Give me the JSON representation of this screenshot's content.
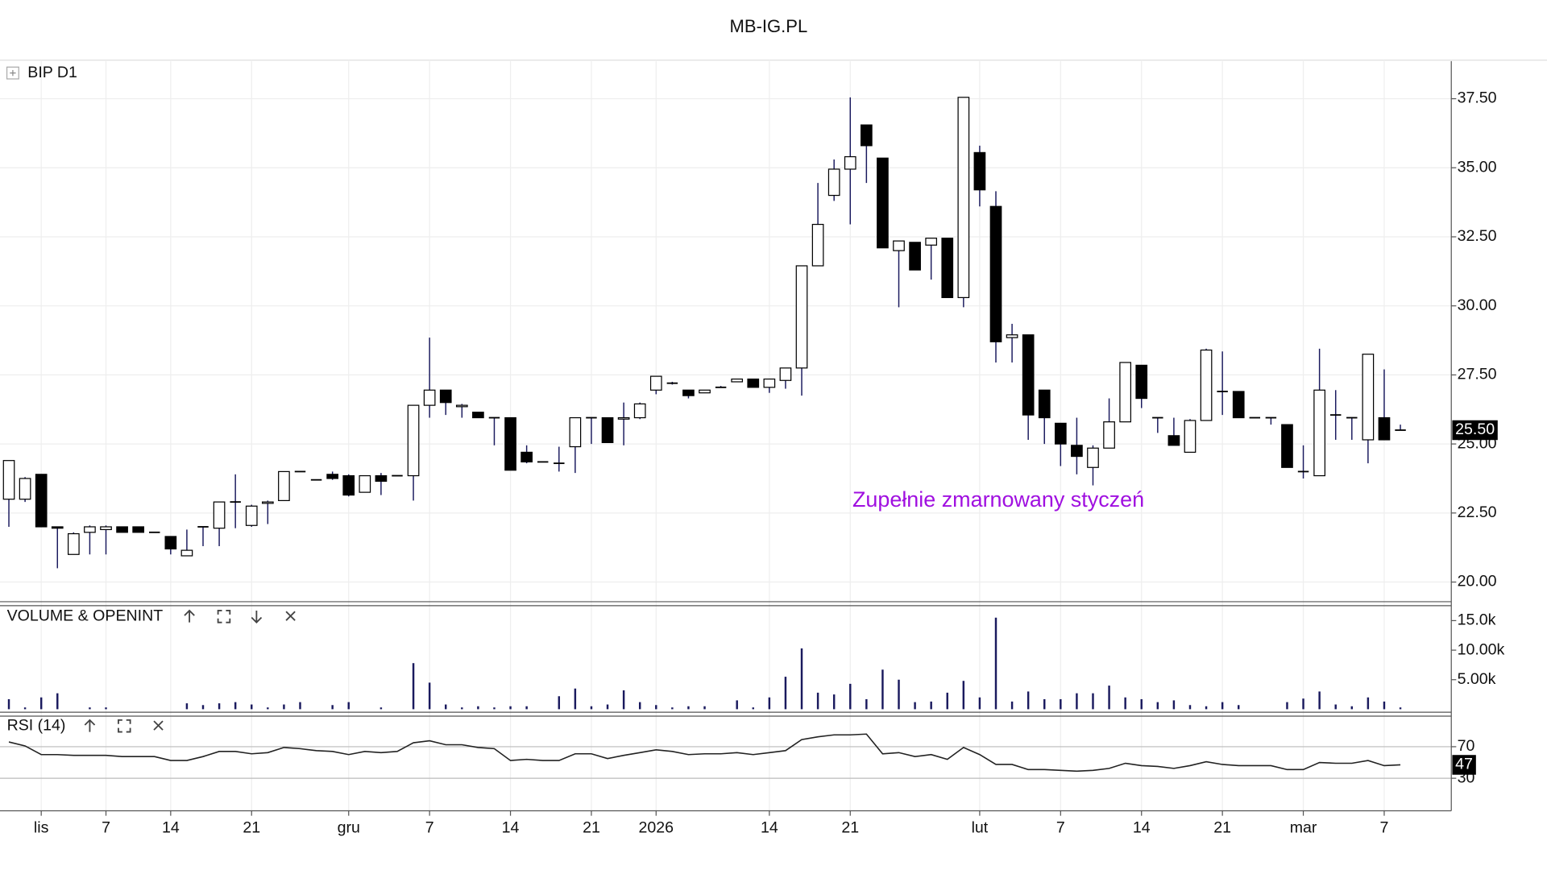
{
  "header": {
    "title": "MB-IG.PL"
  },
  "chart_data": [
    {
      "type": "candlestick",
      "name": "BIP D1",
      "categories": [
        null,
        null,
        "lis",
        null,
        null,
        null,
        "7",
        null,
        null,
        null,
        "14",
        null,
        null,
        null,
        null,
        "21",
        null,
        null,
        null,
        null,
        null,
        "gru",
        null,
        null,
        null,
        null,
        "7",
        null,
        null,
        null,
        null,
        "14",
        null,
        null,
        null,
        null,
        "21",
        null,
        null,
        null,
        "2026",
        null,
        null,
        null,
        null,
        null,
        null,
        "14",
        null,
        null,
        null,
        null,
        "21",
        null,
        null,
        null,
        null,
        null,
        null,
        null,
        "lut",
        null,
        null,
        null,
        null,
        "7",
        null,
        null,
        null,
        null,
        "14",
        null,
        null,
        null,
        null,
        "21",
        null,
        null,
        null,
        null,
        "mar",
        null,
        null,
        null,
        null,
        "7",
        null
      ],
      "open": [
        23.0,
        23.0,
        23.9,
        22.0,
        21.0,
        21.8,
        21.9,
        22.0,
        22.0,
        21.8,
        21.65,
        20.95,
        22.0,
        21.95,
        22.9,
        22.05,
        22.85,
        22.95,
        24.0,
        23.7,
        23.9,
        23.85,
        23.25,
        23.85,
        23.85,
        23.85,
        26.4,
        26.95,
        26.35,
        26.15,
        25.95,
        25.95,
        24.7,
        24.35,
        24.3,
        24.9,
        25.95,
        25.95,
        25.9,
        25.95,
        26.95,
        27.2,
        26.95,
        26.85,
        27.05,
        27.25,
        27.35,
        27.05,
        27.3,
        27.75,
        31.45,
        34.0,
        34.95,
        36.55,
        35.35,
        32.0,
        32.3,
        32.2,
        32.45,
        30.3,
        35.55,
        33.6,
        28.85,
        28.95,
        26.95,
        25.75,
        24.95,
        24.15,
        24.85,
        25.8,
        27.85,
        25.95,
        25.3,
        24.7,
        25.85,
        26.9,
        26.9,
        25.95,
        25.95,
        25.7,
        24.0,
        23.85,
        26.05,
        25.95,
        25.15,
        25.95,
        25.5
      ],
      "high": [
        24.4,
        23.8,
        23.9,
        22.0,
        21.8,
        22.05,
        22.05,
        22.0,
        22.0,
        21.8,
        21.65,
        21.9,
        22.0,
        22.9,
        23.9,
        22.8,
        22.95,
        24.0,
        24.0,
        23.7,
        24.0,
        23.9,
        23.85,
        23.95,
        23.85,
        26.4,
        28.85,
        26.95,
        26.45,
        26.15,
        25.95,
        25.95,
        24.95,
        24.35,
        24.9,
        25.95,
        25.95,
        25.95,
        26.5,
        26.5,
        27.45,
        27.25,
        26.95,
        26.95,
        27.1,
        27.35,
        27.35,
        27.35,
        27.75,
        31.45,
        34.45,
        35.3,
        37.55,
        36.55,
        35.35,
        32.35,
        32.3,
        32.45,
        32.45,
        37.55,
        35.8,
        34.15,
        29.35,
        28.95,
        26.95,
        25.75,
        25.95,
        24.95,
        26.65,
        27.95,
        27.85,
        25.95,
        25.95,
        25.9,
        28.45,
        28.35,
        26.9,
        25.95,
        25.95,
        25.7,
        24.95,
        28.45,
        26.95,
        25.95,
        28.25,
        27.7,
        25.7
      ],
      "low": [
        22.0,
        22.9,
        22.0,
        20.5,
        21.0,
        21.0,
        21.0,
        21.8,
        21.8,
        21.8,
        21.0,
        20.95,
        21.3,
        21.3,
        21.95,
        22.0,
        22.1,
        22.95,
        24.0,
        23.7,
        23.7,
        23.1,
        23.25,
        23.15,
        23.85,
        22.95,
        25.95,
        26.05,
        25.95,
        25.95,
        24.95,
        24.05,
        24.3,
        24.35,
        24.0,
        23.95,
        25.0,
        25.05,
        24.95,
        25.9,
        26.8,
        27.15,
        26.65,
        26.85,
        27.05,
        27.25,
        27.05,
        26.85,
        27.0,
        26.75,
        31.45,
        33.8,
        32.95,
        34.45,
        32.1,
        29.95,
        31.3,
        30.95,
        30.3,
        29.95,
        33.6,
        27.95,
        27.95,
        25.15,
        25.0,
        24.2,
        23.9,
        23.5,
        24.85,
        25.8,
        26.3,
        25.4,
        24.95,
        24.7,
        25.85,
        26.05,
        25.95,
        25.95,
        25.7,
        24.15,
        23.75,
        23.85,
        25.15,
        25.15,
        24.3,
        25.15,
        25.5
      ],
      "close": [
        24.4,
        23.75,
        22.0,
        21.95,
        21.75,
        22.0,
        22.0,
        21.8,
        21.8,
        21.8,
        21.2,
        21.15,
        22.0,
        22.9,
        22.9,
        22.75,
        22.9,
        24.0,
        24.0,
        23.7,
        23.75,
        23.15,
        23.85,
        23.65,
        23.85,
        26.4,
        26.95,
        26.5,
        26.4,
        25.95,
        25.95,
        24.05,
        24.35,
        24.35,
        24.3,
        25.95,
        25.95,
        25.05,
        25.95,
        26.45,
        27.45,
        27.2,
        26.75,
        26.95,
        27.05,
        27.35,
        27.05,
        27.35,
        27.75,
        31.45,
        32.95,
        34.95,
        35.4,
        35.8,
        32.1,
        32.35,
        31.3,
        32.45,
        30.3,
        37.55,
        34.2,
        28.7,
        28.95,
        26.05,
        25.95,
        25.0,
        24.55,
        24.85,
        25.8,
        27.95,
        26.65,
        25.95,
        24.95,
        25.85,
        28.4,
        26.9,
        25.95,
        25.95,
        25.95,
        24.15,
        24.0,
        26.95,
        26.05,
        25.95,
        28.25,
        25.15,
        25.5
      ],
      "ylim": [
        19.36,
        38.86
      ],
      "yticks": [
        {
          "value": 20,
          "label": "20.00"
        },
        {
          "value": 22.5,
          "label": "22.50"
        },
        {
          "value": 25,
          "label": "25.00"
        },
        {
          "value": 27.5,
          "label": "27.50"
        },
        {
          "value": 30,
          "label": "30.00"
        },
        {
          "value": 32.5,
          "label": "32.50"
        },
        {
          "value": 35,
          "label": "35.00"
        },
        {
          "value": 37.5,
          "label": "37.50"
        }
      ],
      "last": {
        "value": 25.5,
        "label": "25.50"
      },
      "annotation": "Zupełnie zmarnowany styczeń",
      "annotation_color": "#a010e0",
      "grid": true
    },
    {
      "type": "bar",
      "title": "VOLUME & OPENINT",
      "color": "#1a1a5e",
      "values": [
        1700,
        300,
        2000,
        2700,
        0,
        300,
        300,
        0,
        0,
        0,
        0,
        1000,
        700,
        1000,
        1200,
        800,
        300,
        800,
        1200,
        0,
        700,
        1200,
        0,
        300,
        0,
        7800,
        4500,
        800,
        300,
        500,
        300,
        500,
        500,
        0,
        2200,
        3500,
        500,
        800,
        3200,
        1200,
        700,
        300,
        500,
        500,
        0,
        1500,
        300,
        2000,
        5500,
        10300,
        2800,
        2500,
        4300,
        1700,
        6700,
        5000,
        1200,
        1300,
        2800,
        4800,
        2000,
        15500,
        1300,
        3000,
        1700,
        1700,
        2700,
        2700,
        4000,
        2000,
        1700,
        1200,
        1500,
        700,
        500,
        1200,
        700,
        0,
        0,
        1200,
        1800,
        3000,
        800,
        500,
        2000,
        1300,
        300
      ],
      "ylim": [
        0,
        17200
      ],
      "yticks": [
        {
          "value": 5000,
          "label": "5.00k"
        },
        {
          "value": 10000,
          "label": "10.00k"
        },
        {
          "value": 15000,
          "label": "15.0k"
        }
      ]
    },
    {
      "type": "line",
      "title": "RSI (14)",
      "color": "#222222",
      "values": [
        76,
        71,
        60,
        60,
        59,
        59,
        59,
        57.5,
        57.5,
        57.5,
        52.5,
        52.5,
        57.5,
        64,
        64,
        61,
        62.5,
        69,
        67.5,
        65,
        64,
        60,
        64,
        62.5,
        64,
        75,
        77.5,
        72.5,
        72.5,
        69,
        67.5,
        52.5,
        54,
        52.5,
        52.5,
        61,
        61,
        55,
        59,
        62.5,
        66,
        64,
        60,
        61,
        61,
        62.5,
        60,
        62.5,
        65,
        79,
        82.5,
        85,
        85,
        86,
        61,
        62.5,
        57.5,
        60,
        54,
        69,
        60,
        47.5,
        47.5,
        41,
        41,
        40,
        39,
        40,
        42.5,
        49,
        46,
        45,
        42.5,
        46,
        51,
        47.5,
        46,
        46,
        46,
        41,
        41,
        50,
        49,
        49,
        52.5,
        46,
        47
      ],
      "ylim": [
        -11.25,
        107.5
      ],
      "yticks": [
        30,
        70
      ],
      "last": 47
    }
  ]
}
